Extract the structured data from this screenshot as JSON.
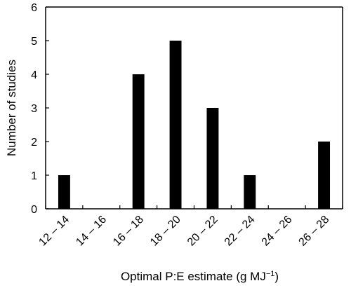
{
  "chart_data": {
    "type": "bar",
    "title": "",
    "categories": [
      "12 – 14",
      "14 – 16",
      "16 – 18",
      "18 – 20",
      "20 – 22",
      "22 – 24",
      "24 – 26",
      "26 – 28"
    ],
    "values": [
      1,
      0,
      4,
      5,
      3,
      1,
      0,
      2
    ],
    "xlabel": "Optimal P:E estimate (g  MJ",
    "xlabel_unit_exponent": "−1",
    "xlabel_close": ")",
    "ylabel": "Number of studies",
    "ylim": [
      0,
      6
    ],
    "yticks": [
      "0",
      "1",
      "2",
      "3",
      "4",
      "5",
      "6"
    ],
    "bar_color": "#000000",
    "grid": false,
    "legend": "none",
    "x_tick_rotation_deg": -45
  }
}
